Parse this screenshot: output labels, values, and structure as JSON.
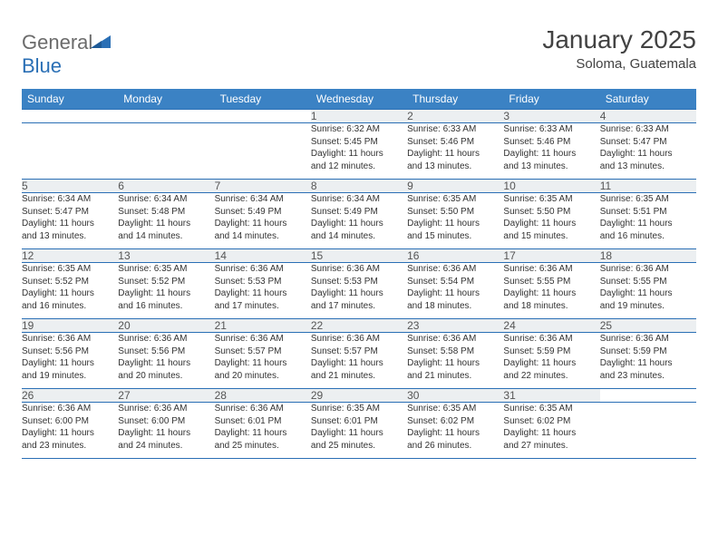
{
  "brand": {
    "part1": "General",
    "part2": "Blue"
  },
  "title": "January 2025",
  "subtitle": "Soloma, Guatemala",
  "colors": {
    "header_bg": "#3b82c4",
    "header_text": "#ffffff",
    "daynum_bg": "#eceff1",
    "border": "#2a6fb5",
    "logo_gray": "#6b6b6b",
    "logo_blue": "#2a6fb5",
    "text": "#333333"
  },
  "daynames": [
    "Sunday",
    "Monday",
    "Tuesday",
    "Wednesday",
    "Thursday",
    "Friday",
    "Saturday"
  ],
  "weeks": [
    {
      "nums": [
        "",
        "",
        "",
        "1",
        "2",
        "3",
        "4"
      ],
      "cells": [
        {
          "empty": true
        },
        {
          "empty": true
        },
        {
          "empty": true
        },
        {
          "sunrise": "Sunrise: 6:32 AM",
          "sunset": "Sunset: 5:45 PM",
          "day1": "Daylight: 11 hours",
          "day2": "and 12 minutes."
        },
        {
          "sunrise": "Sunrise: 6:33 AM",
          "sunset": "Sunset: 5:46 PM",
          "day1": "Daylight: 11 hours",
          "day2": "and 13 minutes."
        },
        {
          "sunrise": "Sunrise: 6:33 AM",
          "sunset": "Sunset: 5:46 PM",
          "day1": "Daylight: 11 hours",
          "day2": "and 13 minutes."
        },
        {
          "sunrise": "Sunrise: 6:33 AM",
          "sunset": "Sunset: 5:47 PM",
          "day1": "Daylight: 11 hours",
          "day2": "and 13 minutes."
        }
      ]
    },
    {
      "nums": [
        "5",
        "6",
        "7",
        "8",
        "9",
        "10",
        "11"
      ],
      "cells": [
        {
          "sunrise": "Sunrise: 6:34 AM",
          "sunset": "Sunset: 5:47 PM",
          "day1": "Daylight: 11 hours",
          "day2": "and 13 minutes."
        },
        {
          "sunrise": "Sunrise: 6:34 AM",
          "sunset": "Sunset: 5:48 PM",
          "day1": "Daylight: 11 hours",
          "day2": "and 14 minutes."
        },
        {
          "sunrise": "Sunrise: 6:34 AM",
          "sunset": "Sunset: 5:49 PM",
          "day1": "Daylight: 11 hours",
          "day2": "and 14 minutes."
        },
        {
          "sunrise": "Sunrise: 6:34 AM",
          "sunset": "Sunset: 5:49 PM",
          "day1": "Daylight: 11 hours",
          "day2": "and 14 minutes."
        },
        {
          "sunrise": "Sunrise: 6:35 AM",
          "sunset": "Sunset: 5:50 PM",
          "day1": "Daylight: 11 hours",
          "day2": "and 15 minutes."
        },
        {
          "sunrise": "Sunrise: 6:35 AM",
          "sunset": "Sunset: 5:50 PM",
          "day1": "Daylight: 11 hours",
          "day2": "and 15 minutes."
        },
        {
          "sunrise": "Sunrise: 6:35 AM",
          "sunset": "Sunset: 5:51 PM",
          "day1": "Daylight: 11 hours",
          "day2": "and 16 minutes."
        }
      ]
    },
    {
      "nums": [
        "12",
        "13",
        "14",
        "15",
        "16",
        "17",
        "18"
      ],
      "cells": [
        {
          "sunrise": "Sunrise: 6:35 AM",
          "sunset": "Sunset: 5:52 PM",
          "day1": "Daylight: 11 hours",
          "day2": "and 16 minutes."
        },
        {
          "sunrise": "Sunrise: 6:35 AM",
          "sunset": "Sunset: 5:52 PM",
          "day1": "Daylight: 11 hours",
          "day2": "and 16 minutes."
        },
        {
          "sunrise": "Sunrise: 6:36 AM",
          "sunset": "Sunset: 5:53 PM",
          "day1": "Daylight: 11 hours",
          "day2": "and 17 minutes."
        },
        {
          "sunrise": "Sunrise: 6:36 AM",
          "sunset": "Sunset: 5:53 PM",
          "day1": "Daylight: 11 hours",
          "day2": "and 17 minutes."
        },
        {
          "sunrise": "Sunrise: 6:36 AM",
          "sunset": "Sunset: 5:54 PM",
          "day1": "Daylight: 11 hours",
          "day2": "and 18 minutes."
        },
        {
          "sunrise": "Sunrise: 6:36 AM",
          "sunset": "Sunset: 5:55 PM",
          "day1": "Daylight: 11 hours",
          "day2": "and 18 minutes."
        },
        {
          "sunrise": "Sunrise: 6:36 AM",
          "sunset": "Sunset: 5:55 PM",
          "day1": "Daylight: 11 hours",
          "day2": "and 19 minutes."
        }
      ]
    },
    {
      "nums": [
        "19",
        "20",
        "21",
        "22",
        "23",
        "24",
        "25"
      ],
      "cells": [
        {
          "sunrise": "Sunrise: 6:36 AM",
          "sunset": "Sunset: 5:56 PM",
          "day1": "Daylight: 11 hours",
          "day2": "and 19 minutes."
        },
        {
          "sunrise": "Sunrise: 6:36 AM",
          "sunset": "Sunset: 5:56 PM",
          "day1": "Daylight: 11 hours",
          "day2": "and 20 minutes."
        },
        {
          "sunrise": "Sunrise: 6:36 AM",
          "sunset": "Sunset: 5:57 PM",
          "day1": "Daylight: 11 hours",
          "day2": "and 20 minutes."
        },
        {
          "sunrise": "Sunrise: 6:36 AM",
          "sunset": "Sunset: 5:57 PM",
          "day1": "Daylight: 11 hours",
          "day2": "and 21 minutes."
        },
        {
          "sunrise": "Sunrise: 6:36 AM",
          "sunset": "Sunset: 5:58 PM",
          "day1": "Daylight: 11 hours",
          "day2": "and 21 minutes."
        },
        {
          "sunrise": "Sunrise: 6:36 AM",
          "sunset": "Sunset: 5:59 PM",
          "day1": "Daylight: 11 hours",
          "day2": "and 22 minutes."
        },
        {
          "sunrise": "Sunrise: 6:36 AM",
          "sunset": "Sunset: 5:59 PM",
          "day1": "Daylight: 11 hours",
          "day2": "and 23 minutes."
        }
      ]
    },
    {
      "nums": [
        "26",
        "27",
        "28",
        "29",
        "30",
        "31",
        ""
      ],
      "cells": [
        {
          "sunrise": "Sunrise: 6:36 AM",
          "sunset": "Sunset: 6:00 PM",
          "day1": "Daylight: 11 hours",
          "day2": "and 23 minutes."
        },
        {
          "sunrise": "Sunrise: 6:36 AM",
          "sunset": "Sunset: 6:00 PM",
          "day1": "Daylight: 11 hours",
          "day2": "and 24 minutes."
        },
        {
          "sunrise": "Sunrise: 6:36 AM",
          "sunset": "Sunset: 6:01 PM",
          "day1": "Daylight: 11 hours",
          "day2": "and 25 minutes."
        },
        {
          "sunrise": "Sunrise: 6:35 AM",
          "sunset": "Sunset: 6:01 PM",
          "day1": "Daylight: 11 hours",
          "day2": "and 25 minutes."
        },
        {
          "sunrise": "Sunrise: 6:35 AM",
          "sunset": "Sunset: 6:02 PM",
          "day1": "Daylight: 11 hours",
          "day2": "and 26 minutes."
        },
        {
          "sunrise": "Sunrise: 6:35 AM",
          "sunset": "Sunset: 6:02 PM",
          "day1": "Daylight: 11 hours",
          "day2": "and 27 minutes."
        },
        {
          "empty": true
        }
      ]
    }
  ]
}
